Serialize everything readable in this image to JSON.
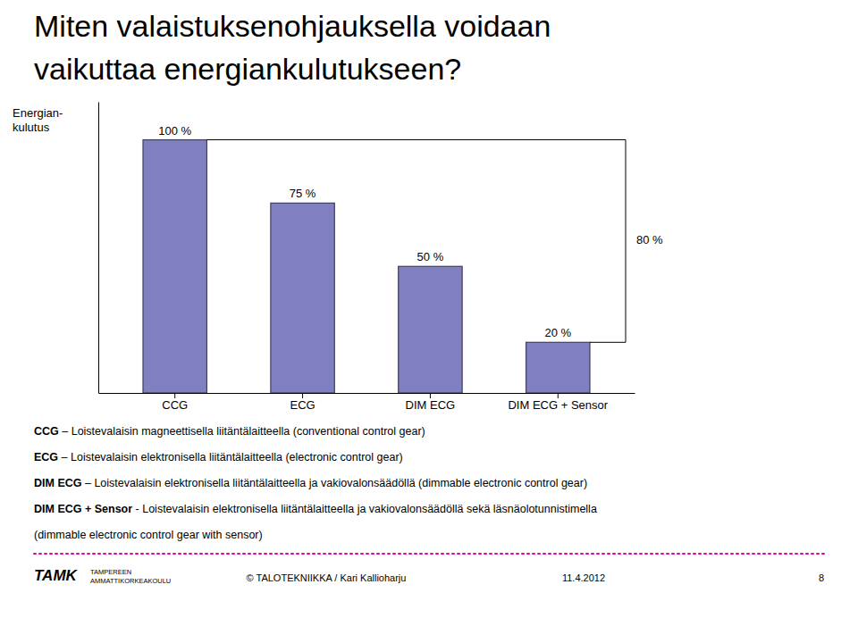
{
  "chart_data": {
    "type": "bar",
    "title": "Miten valaistuksenohjauksella voidaan\nvaikuttaa energiankulutukseen?",
    "ylabel": "Energian-\nkulutus",
    "categories": [
      "CCG",
      "ECG",
      "DIM ECG",
      "DIM ECG + Sensor"
    ],
    "values": [
      100,
      75,
      50,
      20
    ],
    "value_labels": [
      "100 %",
      "75 %",
      "50 %",
      "20 %"
    ],
    "data_labels": true,
    "color": "#8080c0",
    "ylim": [
      0,
      115
    ],
    "yticks": [],
    "tick_labels": "x",
    "grid": false,
    "annotations": [
      "80 %"
    ],
    "notes": [
      {
        "label": "CCG",
        "text": " – Loistevalaisin magneettisella liitäntälaitteella (conventional control gear)"
      },
      {
        "label": "ECG",
        "text": " – Loistevalaisin elektronisella liitäntälaitteella (electronic control gear)"
      },
      {
        "label": "DIM ECG",
        "text": " – Loistevalaisin elektronisella liitäntälaitteella ja vakiovalonsäädöllä (dimmable electronic control gear)"
      },
      {
        "label": "DIM ECG + Sensor",
        "text": " - Loistevalaisin elektronisella liitäntälaitteella ja vakiovalonsäädöllä sekä läsnäolotunnistimella"
      },
      {
        "text": "(dimmable electronic control gear with sensor)"
      }
    ],
    "footer": [
      "TAMK",
      "TAMPEREEN",
      "AMMATTIKORKEAKOULU",
      "© TALOTEKNIIKKA / Kari Kallioharju",
      "11.4.2012",
      "8"
    ]
  }
}
